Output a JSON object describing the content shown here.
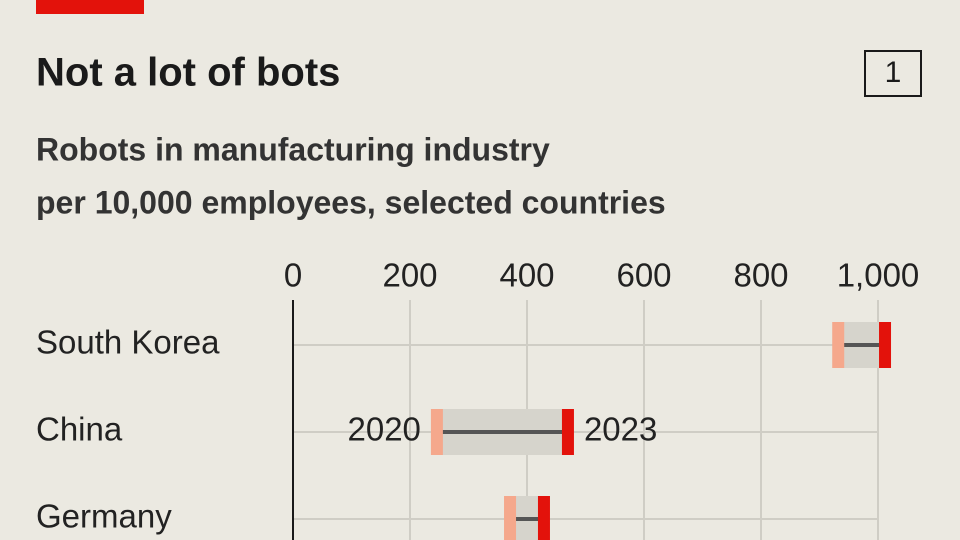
{
  "chart_data": {
    "type": "dumbbell",
    "title": "Not a lot of bots",
    "chart_number": "1",
    "subtitle": [
      "Robots in manufacturing industry",
      "per 10,000 employees, selected countries"
    ],
    "categories": [
      "South Korea",
      "China",
      "Germany"
    ],
    "series": [
      {
        "name": "2020",
        "color": "#f5a88c",
        "values": [
          932,
          246,
          371
        ]
      },
      {
        "name": "2023",
        "color": "#e3120b",
        "values": [
          1012,
          470,
          429
        ]
      }
    ],
    "xlim": [
      0,
      1000
    ],
    "xticks": [
      0,
      200,
      400,
      600,
      800,
      {
        "value": 1000,
        "label": "1,000"
      }
    ],
    "grid": true
  }
}
